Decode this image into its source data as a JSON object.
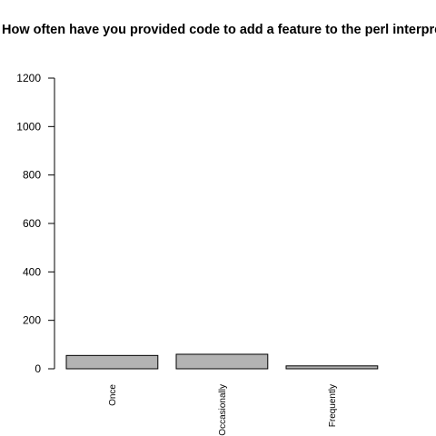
{
  "chart_data": {
    "type": "bar",
    "title": "How often have you provided code to add a feature to the perl interpreter?",
    "xlabel": "",
    "ylabel": "",
    "categories": [
      "Once",
      "Occasionally",
      "Frequently"
    ],
    "values": [
      55,
      60,
      12
    ],
    "ylim": [
      0,
      1200
    ],
    "yticks": [
      0,
      200,
      400,
      600,
      800,
      1000,
      1200
    ],
    "grid": false,
    "bar_color": "#b3b3b3",
    "bar_border_color": "#000000"
  }
}
